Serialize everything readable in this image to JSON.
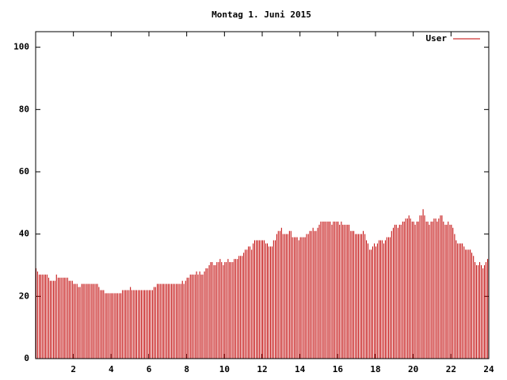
{
  "chart_data": {
    "type": "impulses",
    "title": "Montag 1. Juni 2015",
    "xlim": [
      0,
      24
    ],
    "xticks": [
      2,
      4,
      6,
      8,
      10,
      12,
      14,
      16,
      18,
      20,
      22,
      24
    ],
    "ylim": [
      0,
      105
    ],
    "yticks": [
      0,
      20,
      40,
      60,
      80,
      100
    ],
    "legend": "top-right",
    "x": [
      0,
      0.08,
      0.17,
      0.25,
      0.33,
      0.42,
      0.5,
      0.58,
      0.67,
      0.75,
      0.83,
      0.92,
      1,
      1.08,
      1.17,
      1.25,
      1.33,
      1.42,
      1.5,
      1.58,
      1.67,
      1.75,
      1.83,
      1.92,
      2,
      2.08,
      2.17,
      2.25,
      2.33,
      2.42,
      2.5,
      2.58,
      2.67,
      2.75,
      2.83,
      2.92,
      3,
      3.08,
      3.17,
      3.25,
      3.33,
      3.42,
      3.5,
      3.58,
      3.67,
      3.75,
      3.83,
      3.92,
      4,
      4.08,
      4.17,
      4.25,
      4.33,
      4.42,
      4.5,
      4.58,
      4.67,
      4.75,
      4.83,
      4.92,
      5,
      5.08,
      5.17,
      5.25,
      5.33,
      5.42,
      5.5,
      5.58,
      5.67,
      5.75,
      5.83,
      5.92,
      6,
      6.08,
      6.17,
      6.25,
      6.33,
      6.42,
      6.5,
      6.58,
      6.67,
      6.75,
      6.83,
      6.92,
      7,
      7.08,
      7.17,
      7.25,
      7.33,
      7.42,
      7.5,
      7.58,
      7.67,
      7.75,
      7.83,
      7.92,
      8,
      8.08,
      8.17,
      8.25,
      8.33,
      8.42,
      8.5,
      8.58,
      8.67,
      8.75,
      8.83,
      8.92,
      9,
      9.08,
      9.17,
      9.25,
      9.33,
      9.42,
      9.5,
      9.58,
      9.67,
      9.75,
      9.83,
      9.92,
      10,
      10.08,
      10.17,
      10.25,
      10.33,
      10.42,
      10.5,
      10.58,
      10.67,
      10.75,
      10.83,
      10.92,
      11,
      11.08,
      11.17,
      11.25,
      11.33,
      11.42,
      11.5,
      11.58,
      11.67,
      11.75,
      11.83,
      11.92,
      12,
      12.08,
      12.17,
      12.25,
      12.33,
      12.42,
      12.5,
      12.58,
      12.67,
      12.75,
      12.83,
      12.92,
      13,
      13.08,
      13.17,
      13.25,
      13.33,
      13.42,
      13.5,
      13.58,
      13.67,
      13.75,
      13.83,
      13.92,
      14,
      14.08,
      14.17,
      14.25,
      14.33,
      14.42,
      14.5,
      14.58,
      14.67,
      14.75,
      14.83,
      14.92,
      15,
      15.08,
      15.17,
      15.25,
      15.33,
      15.42,
      15.5,
      15.58,
      15.67,
      15.75,
      15.83,
      15.92,
      16,
      16.08,
      16.17,
      16.25,
      16.33,
      16.42,
      16.5,
      16.58,
      16.67,
      16.75,
      16.83,
      16.92,
      17,
      17.08,
      17.17,
      17.25,
      17.33,
      17.42,
      17.5,
      17.58,
      17.67,
      17.75,
      17.83,
      17.92,
      18,
      18.08,
      18.17,
      18.25,
      18.33,
      18.42,
      18.5,
      18.58,
      18.67,
      18.75,
      18.83,
      18.92,
      19,
      19.08,
      19.17,
      19.25,
      19.33,
      19.42,
      19.5,
      19.58,
      19.67,
      19.75,
      19.83,
      19.92,
      20,
      20.08,
      20.17,
      20.25,
      20.33,
      20.42,
      20.5,
      20.58,
      20.67,
      20.75,
      20.83,
      20.92,
      21,
      21.08,
      21.17,
      21.25,
      21.33,
      21.42,
      21.5,
      21.58,
      21.67,
      21.75,
      21.83,
      21.92,
      22,
      22.08,
      22.17,
      22.25,
      22.33,
      22.42,
      22.5,
      22.58,
      22.67,
      22.75,
      22.83,
      22.92,
      23,
      23.08,
      23.17,
      23.25,
      23.33,
      23.42,
      23.5,
      23.58,
      23.67,
      23.75,
      23.83,
      23.92
    ],
    "series": [
      {
        "name": "User",
        "color": "#c00000",
        "values": [
          29,
          28,
          27,
          27,
          27,
          27,
          27,
          27,
          26,
          25,
          25,
          25,
          25,
          27,
          26,
          26,
          26,
          26,
          26,
          26,
          26,
          25,
          25,
          25,
          24,
          24,
          24,
          23,
          23,
          24,
          24,
          24,
          24,
          24,
          24,
          24,
          24,
          24,
          24,
          24,
          23,
          22,
          22,
          22,
          21,
          21,
          21,
          21,
          21,
          21,
          21,
          21,
          21,
          21,
          21,
          22,
          22,
          22,
          22,
          22,
          23,
          22,
          22,
          22,
          22,
          22,
          22,
          22,
          22,
          22,
          22,
          22,
          22,
          22,
          22,
          23,
          23,
          24,
          24,
          24,
          24,
          24,
          24,
          24,
          24,
          24,
          24,
          24,
          24,
          24,
          24,
          24,
          24,
          25,
          24,
          25,
          26,
          26,
          27,
          27,
          27,
          27,
          28,
          27,
          28,
          27,
          27,
          28,
          29,
          29,
          30,
          31,
          31,
          30,
          30,
          31,
          31,
          32,
          31,
          30,
          31,
          31,
          32,
          31,
          31,
          31,
          32,
          32,
          32,
          33,
          33,
          33,
          34,
          35,
          35,
          36,
          36,
          35,
          37,
          38,
          38,
          38,
          38,
          38,
          38,
          38,
          37,
          37,
          36,
          36,
          36,
          38,
          38,
          40,
          41,
          41,
          42,
          40,
          40,
          40,
          40,
          41,
          41,
          39,
          39,
          39,
          39,
          38,
          39,
          39,
          39,
          39,
          40,
          40,
          41,
          41,
          42,
          41,
          41,
          42,
          43,
          44,
          44,
          44,
          44,
          44,
          44,
          44,
          43,
          44,
          44,
          44,
          44,
          43,
          44,
          43,
          43,
          43,
          43,
          43,
          41,
          41,
          41,
          40,
          40,
          40,
          40,
          40,
          41,
          40,
          38,
          37,
          35,
          35,
          36,
          37,
          36,
          37,
          38,
          38,
          38,
          37,
          38,
          39,
          39,
          39,
          41,
          42,
          43,
          43,
          42,
          43,
          43,
          44,
          44,
          45,
          45,
          46,
          45,
          44,
          44,
          43,
          44,
          44,
          46,
          46,
          48,
          46,
          44,
          44,
          43,
          44,
          44,
          45,
          45,
          44,
          45,
          46,
          46,
          44,
          43,
          43,
          44,
          43,
          43,
          42,
          40,
          38,
          37,
          37,
          37,
          37,
          36,
          35,
          35,
          35,
          35,
          34,
          33,
          31,
          30,
          30,
          31,
          30,
          29,
          30,
          31,
          32
        ]
      }
    ]
  }
}
